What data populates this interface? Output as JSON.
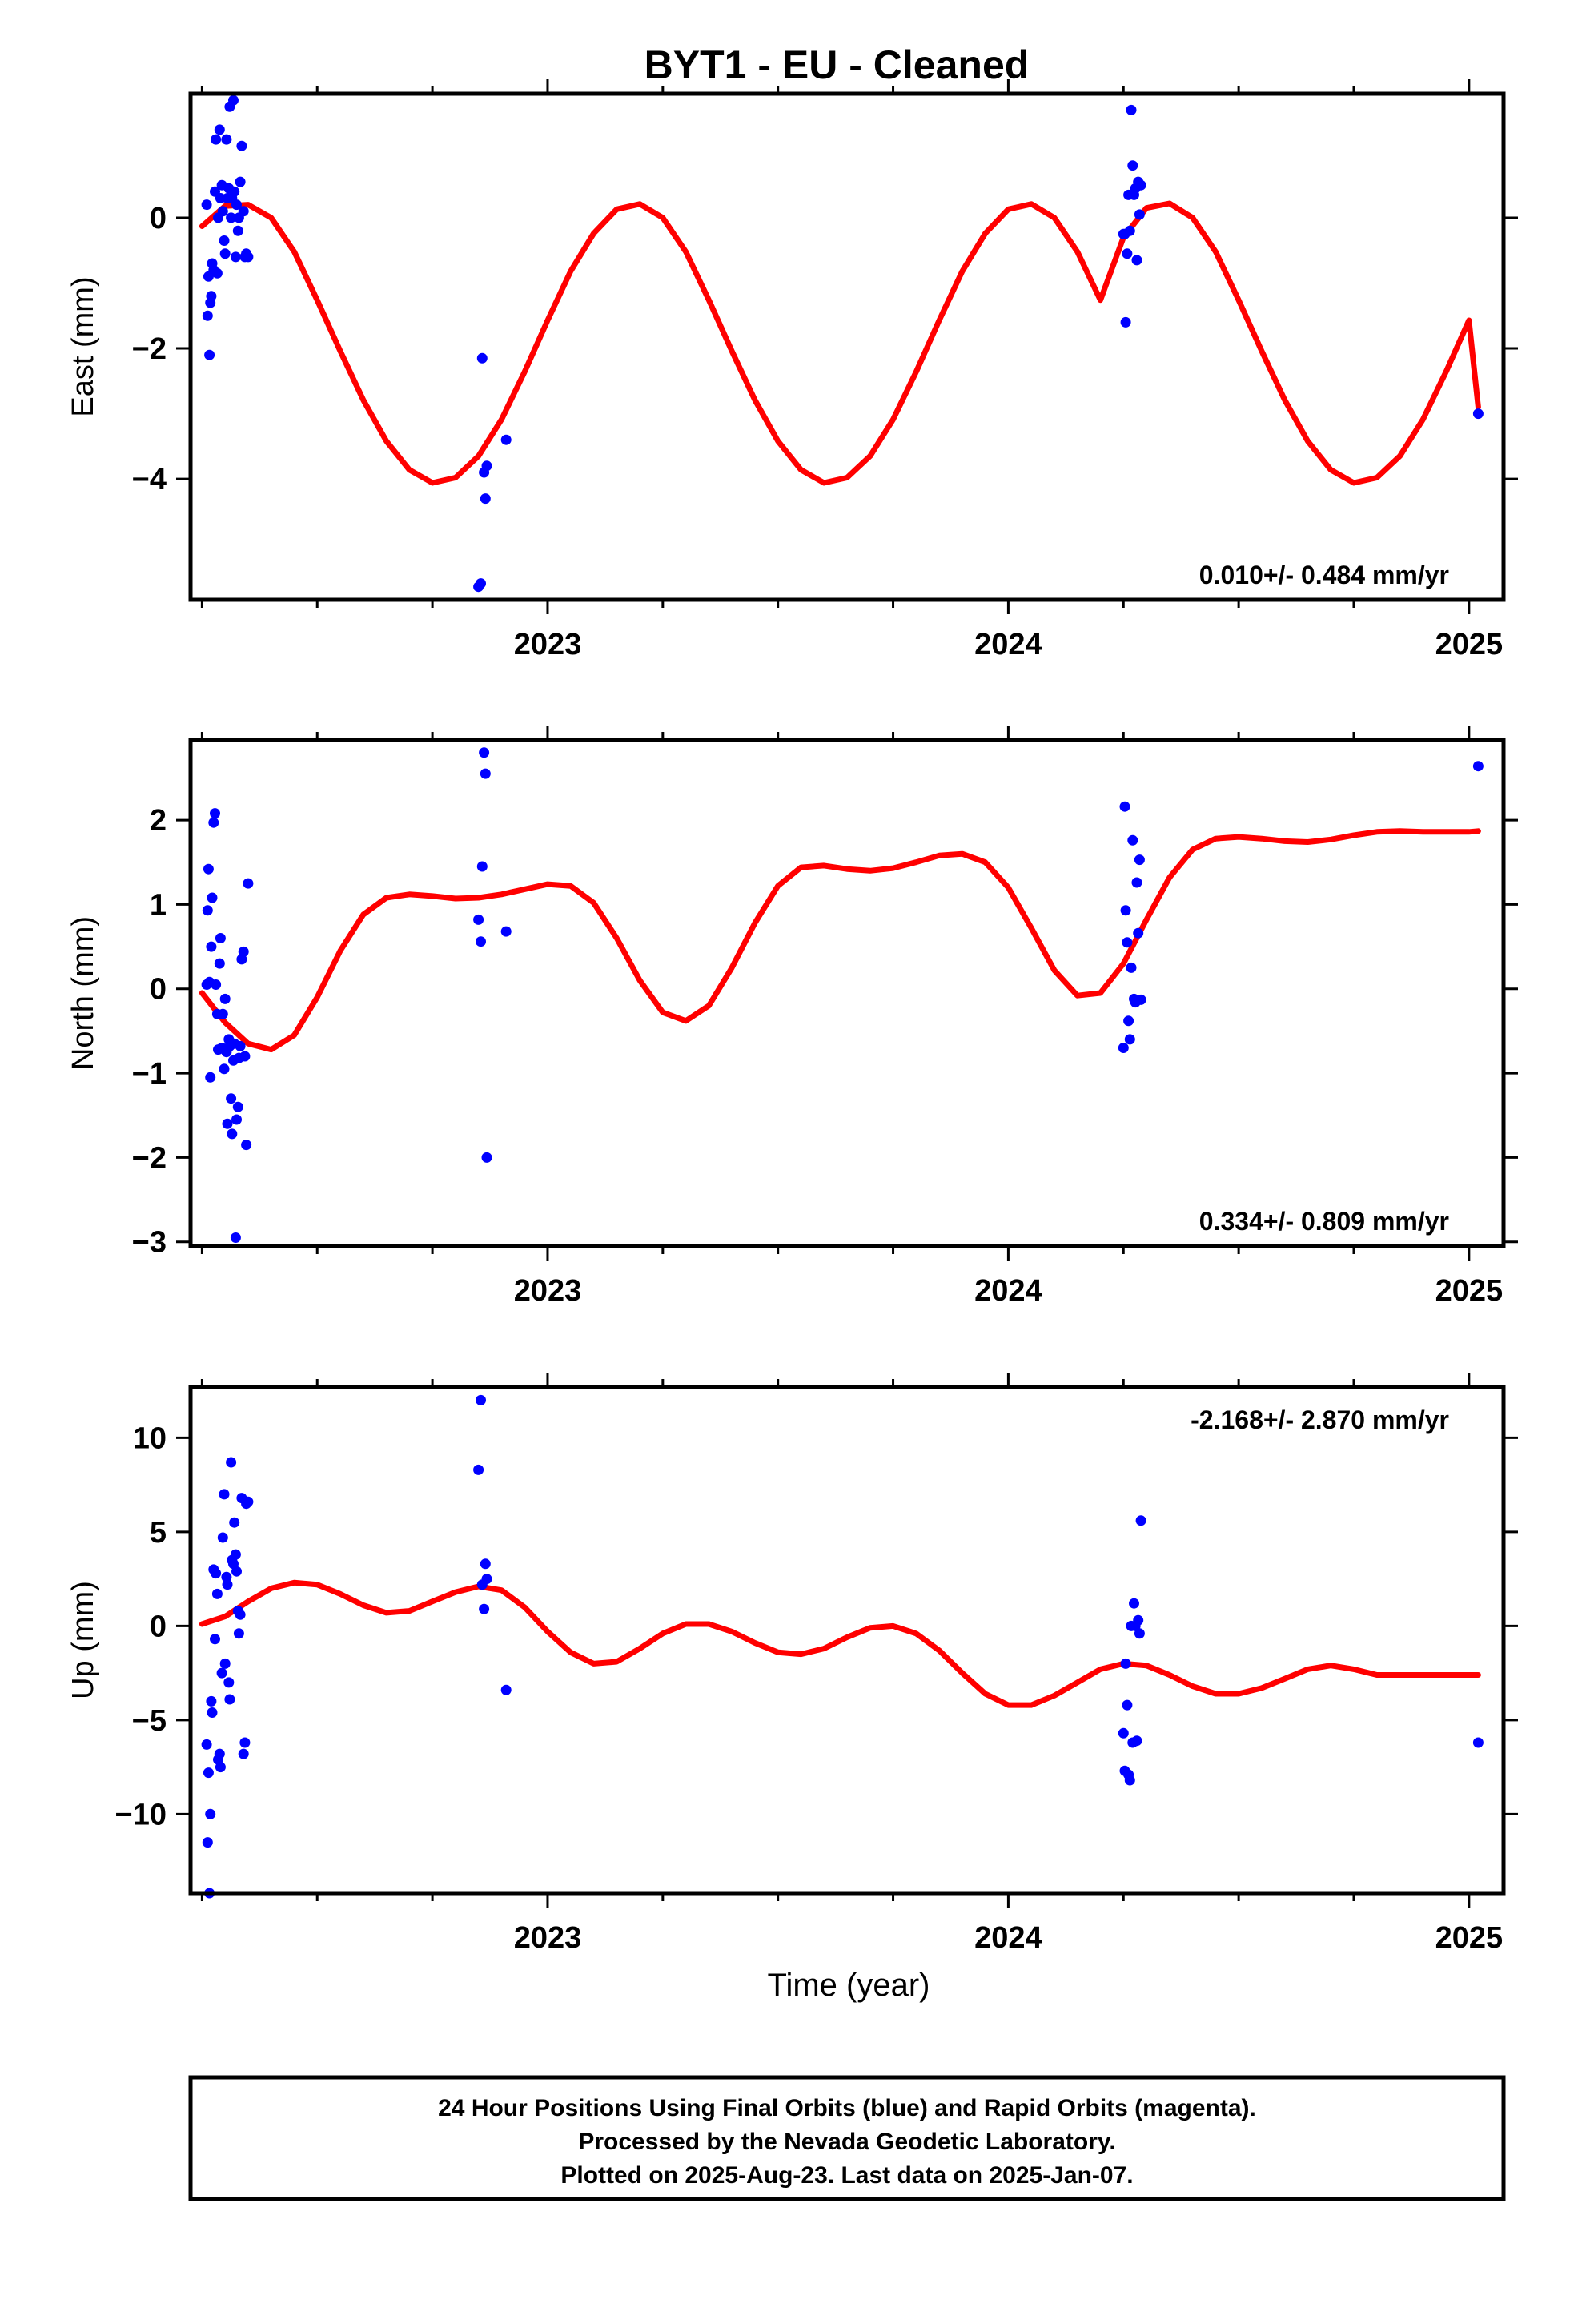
{
  "title": "BYT1  - EU - Cleaned",
  "xlabel": "Time (year)",
  "footer": {
    "line1": "24 Hour Positions Using Final Orbits (blue) and Rapid Orbits (magenta).",
    "line2": "Processed by the Nevada Geodetic Laboratory.",
    "line3": "Plotted on 2025-Aug-23. Last data on 2025-Jan-07."
  },
  "colors": {
    "points": "#0000ff",
    "model": "#ff0000",
    "frame": "#000000"
  },
  "chart_data": [
    {
      "type": "scatter",
      "ylabel": "East (mm)",
      "rate_text": "0.010+/- 0.484 mm/yr",
      "rate_position": "bottom-right",
      "xlim": [
        2022.225,
        2025.075
      ],
      "ylim": [
        -5.85,
        1.9
      ],
      "xticks": [
        2023,
        2024,
        2025
      ],
      "yticks": [
        0,
        -2,
        -4
      ],
      "ytick_labels": [
        "0",
        "−2",
        "−4"
      ],
      "points": {
        "x": [
          2022.26,
          2022.262,
          2022.264,
          2022.266,
          2022.268,
          2022.27,
          2022.272,
          2022.275,
          2022.278,
          2022.28,
          2022.283,
          2022.285,
          2022.288,
          2022.29,
          2022.293,
          2022.295,
          2022.298,
          2022.3,
          2022.303,
          2022.305,
          2022.308,
          2022.31,
          2022.313,
          2022.315,
          2022.318,
          2022.32,
          2022.323,
          2022.325,
          2022.328,
          2022.33,
          2022.333,
          2022.336,
          2022.34,
          2022.343,
          2022.346,
          2022.35,
          2022.85,
          2022.855,
          2022.858,
          2022.862,
          2022.865,
          2022.868,
          2022.91,
          2024.25,
          2024.253,
          2024.255,
          2024.258,
          2024.261,
          2024.264,
          2024.267,
          2024.27,
          2024.273,
          2024.276,
          2024.279,
          2024.282,
          2024.285,
          2024.288,
          2025.02
        ],
        "y": [
          0.2,
          -1.5,
          -0.9,
          -2.1,
          -1.3,
          -1.2,
          -0.7,
          -0.8,
          0.4,
          1.2,
          -0.85,
          0.0,
          1.35,
          0.3,
          0.5,
          0.1,
          -0.35,
          -0.55,
          1.2,
          0.3,
          0.45,
          1.7,
          0.0,
          0.3,
          1.8,
          0.4,
          -0.6,
          0.2,
          -0.2,
          0.0,
          0.55,
          1.1,
          0.1,
          -0.6,
          -0.55,
          -0.6,
          -5.65,
          -5.6,
          -2.15,
          -3.9,
          -4.3,
          -3.8,
          -3.4,
          -0.25,
          -0.25,
          -1.6,
          -0.55,
          0.35,
          -0.2,
          1.65,
          0.8,
          0.35,
          0.45,
          -0.65,
          0.55,
          0.05,
          0.5,
          -3.0
        ]
      },
      "model": {
        "x": [
          2022.25,
          2022.3,
          2022.35,
          2022.4,
          2022.45,
          2022.5,
          2022.55,
          2022.6,
          2022.65,
          2022.7,
          2022.75,
          2022.8,
          2022.85,
          2022.9,
          2022.95,
          2023.0,
          2023.05,
          2023.1,
          2023.15,
          2023.2,
          2023.25,
          2023.3,
          2023.35,
          2023.4,
          2023.45,
          2023.5,
          2023.55,
          2023.6,
          2023.65,
          2023.7,
          2023.75,
          2023.8,
          2023.85,
          2023.9,
          2023.95,
          2024.0,
          2024.05,
          2024.1,
          2024.15,
          2024.2,
          2024.25,
          2024.3,
          2024.35,
          2024.4,
          2024.45,
          2024.5,
          2024.55,
          2024.6,
          2024.65,
          2024.7,
          2024.75,
          2024.8,
          2024.85,
          2024.9,
          2024.95,
          2025.0,
          2025.02
        ],
        "y": [
          -0.13,
          0.18,
          0.2,
          0.0,
          -0.52,
          -1.26,
          -2.04,
          -2.79,
          -3.42,
          -3.86,
          -4.06,
          -3.98,
          -3.65,
          -3.09,
          -2.36,
          -1.57,
          -0.82,
          -0.24,
          0.13,
          0.21,
          0.0,
          -0.52,
          -1.26,
          -2.04,
          -2.79,
          -3.42,
          -3.86,
          -4.06,
          -3.98,
          -3.65,
          -3.09,
          -2.36,
          -1.57,
          -0.82,
          -0.24,
          0.13,
          0.21,
          0.0,
          -0.52,
          -1.26,
          -0.3,
          0.15,
          0.22,
          0.0,
          -0.52,
          -1.26,
          -2.04,
          -2.79,
          -3.42,
          -3.86,
          -4.06,
          -3.98,
          -3.65,
          -3.09,
          -2.36,
          -1.57,
          -2.9
        ]
      }
    },
    {
      "type": "scatter",
      "ylabel": "North (mm)",
      "rate_text": "0.334+/- 0.809 mm/yr",
      "rate_position": "bottom-right",
      "xlim": [
        2022.225,
        2025.075
      ],
      "ylim": [
        -3.05,
        2.95
      ],
      "xticks": [
        2023,
        2024,
        2025
      ],
      "yticks": [
        2,
        1,
        0,
        -1,
        -2,
        -3
      ],
      "ytick_labels": [
        "2",
        "1",
        "0",
        "−1",
        "−2",
        "−3"
      ],
      "points": {
        "x": [
          2022.26,
          2022.262,
          2022.264,
          2022.266,
          2022.268,
          2022.27,
          2022.272,
          2022.275,
          2022.278,
          2022.28,
          2022.283,
          2022.285,
          2022.288,
          2022.29,
          2022.293,
          2022.295,
          2022.298,
          2022.3,
          2022.303,
          2022.305,
          2022.308,
          2022.31,
          2022.313,
          2022.315,
          2022.318,
          2022.32,
          2022.323,
          2022.325,
          2022.328,
          2022.33,
          2022.333,
          2022.336,
          2022.34,
          2022.343,
          2022.346,
          2022.35,
          2022.85,
          2022.855,
          2022.858,
          2022.862,
          2022.865,
          2022.868,
          2022.91,
          2024.25,
          2024.253,
          2024.255,
          2024.258,
          2024.261,
          2024.264,
          2024.267,
          2024.27,
          2024.273,
          2024.276,
          2024.279,
          2024.282,
          2024.285,
          2024.288,
          2025.02
        ],
        "y": [
          0.05,
          0.93,
          1.42,
          0.08,
          -1.05,
          0.5,
          1.08,
          1.97,
          2.08,
          0.05,
          -0.3,
          -0.72,
          0.3,
          0.6,
          -0.7,
          -0.3,
          -0.95,
          -0.12,
          -0.75,
          -1.6,
          -0.6,
          -0.68,
          -1.3,
          -1.72,
          -0.85,
          -0.65,
          -2.95,
          -1.55,
          -1.4,
          -0.82,
          -0.68,
          0.35,
          0.44,
          -0.8,
          -1.85,
          1.25,
          0.82,
          0.56,
          1.45,
          2.8,
          2.55,
          -2.0,
          0.68,
          -0.7,
          2.16,
          0.93,
          0.55,
          -0.38,
          -0.6,
          0.25,
          1.76,
          -0.12,
          -0.16,
          1.26,
          0.66,
          1.53,
          -0.13,
          2.64
        ]
      },
      "model": {
        "x": [
          2022.25,
          2022.3,
          2022.35,
          2022.4,
          2022.45,
          2022.5,
          2022.55,
          2022.6,
          2022.65,
          2022.7,
          2022.75,
          2022.8,
          2022.85,
          2022.9,
          2022.95,
          2023.0,
          2023.05,
          2023.1,
          2023.15,
          2023.2,
          2023.25,
          2023.3,
          2023.35,
          2023.4,
          2023.45,
          2023.5,
          2023.55,
          2023.6,
          2023.65,
          2023.7,
          2023.75,
          2023.8,
          2023.85,
          2023.9,
          2023.95,
          2024.0,
          2024.05,
          2024.1,
          2024.15,
          2024.2,
          2024.25,
          2024.3,
          2024.35,
          2024.4,
          2024.45,
          2024.5,
          2024.55,
          2024.6,
          2024.65,
          2024.7,
          2024.75,
          2024.8,
          2024.85,
          2024.9,
          2024.95,
          2025.0,
          2025.02
        ],
        "y": [
          -0.05,
          -0.4,
          -0.65,
          -0.72,
          -0.55,
          -0.1,
          0.45,
          0.88,
          1.08,
          1.12,
          1.1,
          1.07,
          1.08,
          1.12,
          1.18,
          1.24,
          1.22,
          1.02,
          0.6,
          0.1,
          -0.28,
          -0.38,
          -0.2,
          0.25,
          0.78,
          1.22,
          1.44,
          1.46,
          1.42,
          1.4,
          1.43,
          1.5,
          1.58,
          1.6,
          1.5,
          1.2,
          0.72,
          0.22,
          -0.08,
          -0.05,
          0.3,
          0.82,
          1.32,
          1.65,
          1.78,
          1.8,
          1.78,
          1.75,
          1.74,
          1.77,
          1.82,
          1.86,
          1.87,
          1.86,
          1.86,
          1.86,
          1.87
        ]
      }
    },
    {
      "type": "scatter",
      "ylabel": "Up (mm)",
      "rate_text": "-2.168+/- 2.870 mm/yr",
      "rate_position": "top-right",
      "xlim": [
        2022.225,
        2025.075
      ],
      "ylim": [
        -14.2,
        12.7
      ],
      "xticks": [
        2023,
        2024,
        2025
      ],
      "yticks": [
        10,
        5,
        0,
        -5,
        -10
      ],
      "ytick_labels": [
        "10",
        "5",
        "0",
        "−5",
        "−10"
      ],
      "points": {
        "x": [
          2022.26,
          2022.262,
          2022.264,
          2022.266,
          2022.268,
          2022.27,
          2022.272,
          2022.275,
          2022.278,
          2022.28,
          2022.283,
          2022.285,
          2022.288,
          2022.29,
          2022.293,
          2022.295,
          2022.298,
          2022.3,
          2022.303,
          2022.305,
          2022.308,
          2022.31,
          2022.313,
          2022.315,
          2022.318,
          2022.32,
          2022.323,
          2022.325,
          2022.328,
          2022.33,
          2022.333,
          2022.336,
          2022.34,
          2022.343,
          2022.346,
          2022.35,
          2022.85,
          2022.855,
          2022.858,
          2022.862,
          2022.865,
          2022.868,
          2022.91,
          2024.25,
          2024.253,
          2024.255,
          2024.258,
          2024.261,
          2024.264,
          2024.267,
          2024.27,
          2024.273,
          2024.276,
          2024.279,
          2024.282,
          2024.285,
          2024.288,
          2025.02
        ],
        "y": [
          -6.3,
          -11.5,
          -7.8,
          -14.2,
          -10.0,
          -4.0,
          -4.6,
          3.0,
          -0.7,
          2.8,
          1.7,
          -7.1,
          -6.8,
          -7.5,
          -2.5,
          4.7,
          7.0,
          -2.0,
          2.6,
          2.2,
          -3.0,
          -3.9,
          8.7,
          3.5,
          3.3,
          5.5,
          3.8,
          2.9,
          0.8,
          -0.4,
          0.6,
          6.8,
          -6.8,
          -6.2,
          6.5,
          6.6,
          8.3,
          12.0,
          2.2,
          0.9,
          3.3,
          2.5,
          -3.4,
          -5.7,
          -7.7,
          -2.0,
          -4.2,
          -7.9,
          -8.2,
          0.0,
          -6.2,
          1.2,
          0.0,
          -6.1,
          0.3,
          -0.4,
          5.6,
          -6.2
        ],
        "x_note": ""
      },
      "model": {
        "x": [
          2022.25,
          2022.3,
          2022.35,
          2022.4,
          2022.45,
          2022.5,
          2022.55,
          2022.6,
          2022.65,
          2022.7,
          2022.75,
          2022.8,
          2022.85,
          2022.9,
          2022.95,
          2023.0,
          2023.05,
          2023.1,
          2023.15,
          2023.2,
          2023.25,
          2023.3,
          2023.35,
          2023.4,
          2023.45,
          2023.5,
          2023.55,
          2023.6,
          2023.65,
          2023.7,
          2023.75,
          2023.8,
          2023.85,
          2023.9,
          2023.95,
          2024.0,
          2024.05,
          2024.1,
          2024.15,
          2024.2,
          2024.25,
          2024.3,
          2024.35,
          2024.4,
          2024.45,
          2024.5,
          2024.55,
          2024.6,
          2024.65,
          2024.7,
          2024.75,
          2024.8,
          2024.85,
          2024.9,
          2024.95,
          2025.0,
          2025.02
        ],
        "y": [
          0.1,
          0.5,
          1.3,
          2.0,
          2.3,
          2.2,
          1.7,
          1.1,
          0.7,
          0.8,
          1.3,
          1.8,
          2.1,
          1.9,
          1.0,
          -0.3,
          -1.4,
          -2.0,
          -1.9,
          -1.2,
          -0.4,
          0.1,
          0.1,
          -0.3,
          -0.9,
          -1.4,
          -1.5,
          -1.2,
          -0.6,
          -0.1,
          0.0,
          -0.4,
          -1.3,
          -2.5,
          -3.6,
          -4.2,
          -4.2,
          -3.7,
          -3.0,
          -2.3,
          -2.0,
          -2.1,
          -2.6,
          -3.2,
          -3.6,
          -3.6,
          -3.3,
          -2.8,
          -2.3,
          -2.1,
          -2.3,
          -2.6,
          -2.6,
          -2.6,
          -2.6,
          -2.6,
          -2.6
        ]
      }
    }
  ]
}
